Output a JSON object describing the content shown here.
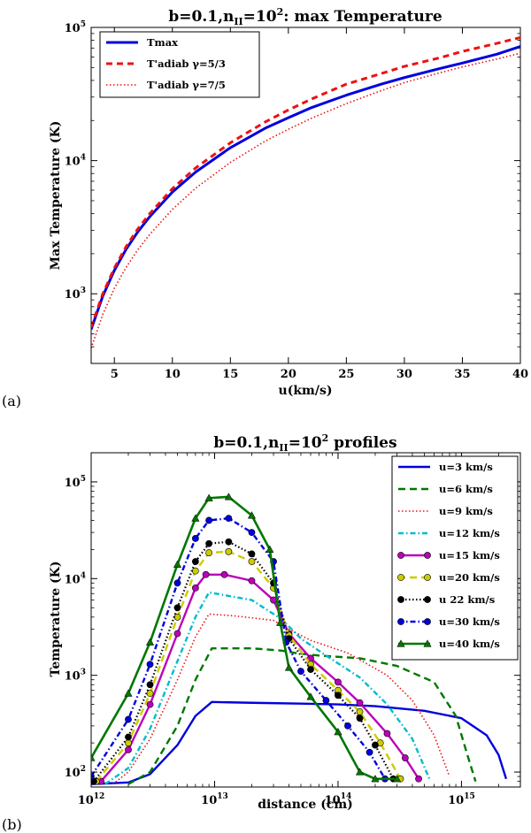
{
  "chart_data": [
    {
      "panel": "(a)",
      "type": "line",
      "title": "b=0.1,n_II=10^2: max Temperature",
      "title_parts": {
        "pre": "b=0.1,n",
        "sub": "II",
        "mid": "=10",
        "sup": "2",
        "post": ":  max Temperature"
      },
      "xlabel": "u(km/s)",
      "ylabel": "Max Temperature (K)",
      "xscale": "linear",
      "yscale": "log",
      "xlim": [
        3,
        40
      ],
      "ylim": [
        300,
        100000
      ],
      "xticks": [
        5,
        10,
        15,
        20,
        25,
        30,
        35,
        40
      ],
      "yticks": [
        {
          "v": 1000,
          "b": "10",
          "e": "3"
        },
        {
          "v": 10000,
          "b": "10",
          "e": "4"
        },
        {
          "v": 100000,
          "b": "10",
          "e": "5"
        }
      ],
      "legend_position": "top-left",
      "series": [
        {
          "name": "Tmax",
          "color": "#0000dd",
          "dash": "",
          "width": 3,
          "marker": "",
          "x": [
            3,
            4,
            5,
            6,
            7,
            8,
            10,
            12,
            15,
            18,
            20,
            22,
            25,
            28,
            30,
            33,
            35,
            38,
            40
          ],
          "y": [
            540,
            960,
            1500,
            2150,
            2900,
            3750,
            5800,
            8200,
            12500,
            17500,
            21000,
            25000,
            31000,
            37500,
            42000,
            49000,
            54000,
            63000,
            72000
          ]
        },
        {
          "name": "T'adiab γ=5/3",
          "color": "#ee1111",
          "dash": "7,5",
          "width": 3,
          "marker": "",
          "x": [
            3,
            4,
            5,
            6,
            7,
            8,
            10,
            12,
            15,
            18,
            20,
            22,
            25,
            28,
            30,
            33,
            35,
            38,
            40
          ],
          "y": [
            560,
            1000,
            1560,
            2250,
            3050,
            3950,
            6150,
            8800,
            13600,
            19500,
            24000,
            29000,
            37500,
            45000,
            51000,
            59000,
            66000,
            76000,
            84000
          ]
        },
        {
          "name": "T'adiab γ=7/5",
          "color": "#ee1111",
          "dash": "1.5,2.5",
          "width": 1.6,
          "marker": "",
          "x": [
            3,
            4,
            5,
            6,
            7,
            8,
            10,
            12,
            15,
            18,
            20,
            22,
            25,
            28,
            30,
            33,
            35,
            38,
            40
          ],
          "y": [
            390,
            700,
            1100,
            1570,
            2130,
            2760,
            4300,
            6200,
            9700,
            14000,
            17200,
            20800,
            26800,
            33500,
            38500,
            45500,
            50500,
            58000,
            64000
          ]
        }
      ]
    },
    {
      "panel": "(b)",
      "type": "line",
      "title": "b=0.1,n_II=10^2 profiles",
      "title_parts": {
        "pre": "b=0.1,n",
        "sub": "II",
        "mid": "=10",
        "sup": "2",
        "post": "  profiles"
      },
      "xlabel": "distance (cm)",
      "ylabel": "Temperature (K)",
      "xscale": "log",
      "yscale": "log",
      "xlim": [
        1000000000000.0,
        3000000000000000.0
      ],
      "ylim": [
        70,
        200000
      ],
      "xticks": [
        {
          "v": 1000000000000.0,
          "b": "10",
          "e": "12"
        },
        {
          "v": 10000000000000.0,
          "b": "10",
          "e": "13"
        },
        {
          "v": 100000000000000.0,
          "b": "10",
          "e": "14"
        },
        {
          "v": 1000000000000000.0,
          "b": "10",
          "e": "15"
        }
      ],
      "yticks": [
        {
          "v": 100,
          "b": "10",
          "e": "2"
        },
        {
          "v": 1000,
          "b": "10",
          "e": "3"
        },
        {
          "v": 10000,
          "b": "10",
          "e": "4"
        },
        {
          "v": 100000,
          "b": "10",
          "e": "5"
        }
      ],
      "legend_position": "top-right",
      "series": [
        {
          "name": "u=3 km/s",
          "color": "#0000dd",
          "dash": "",
          "width": 2.4,
          "marker": "",
          "x": [
            1000000000000.0,
            2000000000000.0,
            3000000000000.0,
            5000000000000.0,
            7000000000000.0,
            9500000000000.0,
            20000000000000.0,
            50000000000000.0,
            100000000000000.0,
            200000000000000.0,
            500000000000000.0,
            1000000000000000.0,
            1600000000000000.0,
            2000000000000000.0,
            2300000000000000.0
          ],
          "y": [
            75,
            78,
            95,
            190,
            380,
            530,
            520,
            510,
            500,
            480,
            430,
            360,
            240,
            150,
            85
          ]
        },
        {
          "name": "u=6 km/s",
          "color": "#007700",
          "dash": "8,5",
          "width": 2.4,
          "marker": "",
          "x": [
            2000000000000.0,
            3000000000000.0,
            5000000000000.0,
            7000000000000.0,
            9500000000000.0,
            20000000000000.0,
            35000000000000.0,
            45000000000000.0,
            70000000000000.0,
            150000000000000.0,
            300000000000000.0,
            600000000000000.0,
            900000000000000.0,
            1100000000000000.0,
            1300000000000000.0
          ],
          "y": [
            75,
            100,
            300,
            900,
            1900,
            1900,
            1800,
            1700,
            1600,
            1500,
            1250,
            850,
            380,
            160,
            80
          ]
        },
        {
          "name": "u=9 km/s",
          "color": "#ee1111",
          "dash": "1.5,2.5",
          "width": 1.6,
          "marker": "",
          "x": [
            1500000000000.0,
            2000000000000.0,
            3000000000000.0,
            5000000000000.0,
            7000000000000.0,
            9000000000000.0,
            15000000000000.0,
            30000000000000.0,
            40000000000000.0,
            60000000000000.0,
            120000000000000.0,
            250000000000000.0,
            400000000000000.0,
            600000000000000.0,
            800000000000000.0
          ],
          "y": [
            75,
            100,
            220,
            900,
            2500,
            4300,
            4100,
            3700,
            3000,
            2300,
            1700,
            1000,
            550,
            240,
            90
          ]
        },
        {
          "name": "u=12 km/s",
          "color": "#00bbcc",
          "dash": "6,3,1.5,3",
          "width": 2.4,
          "marker": "",
          "x": [
            1300000000000.0,
            2000000000000.0,
            3000000000000.0,
            5000000000000.0,
            7000000000000.0,
            9000000000000.0,
            20000000000000.0,
            35000000000000.0,
            50000000000000.0,
            80000000000000.0,
            150000000000000.0,
            250000000000000.0,
            400000000000000.0,
            550000000000000.0
          ],
          "y": [
            75,
            110,
            280,
            1400,
            4000,
            7200,
            6000,
            3800,
            2400,
            1600,
            950,
            500,
            220,
            85
          ]
        },
        {
          "name": "u=15 km/s",
          "color": "#bb00bb",
          "dash": "",
          "width": 2.4,
          "marker": "circle",
          "x": [
            1200000000000.0,
            2000000000000.0,
            3000000000000.0,
            5000000000000.0,
            7000000000000.0,
            8500000000000.0,
            12000000000000.0,
            20000000000000.0,
            30000000000000.0,
            40000000000000.0,
            60000000000000.0,
            100000000000000.0,
            150000000000000.0,
            250000000000000.0,
            350000000000000.0,
            450000000000000.0
          ],
          "y": [
            80,
            170,
            500,
            2700,
            8000,
            11000,
            11000,
            9500,
            6000,
            2700,
            1500,
            850,
            520,
            250,
            140,
            85
          ]
        },
        {
          "name": "u=20 km/s",
          "color": "#cccc00",
          "dash": "8,5",
          "width": 2.4,
          "marker": "circle",
          "x": [
            1100000000000.0,
            2000000000000.0,
            3000000000000.0,
            5000000000000.0,
            7000000000000.0,
            9000000000000.0,
            13000000000000.0,
            20000000000000.0,
            30000000000000.0,
            40000000000000.0,
            60000000000000.0,
            100000000000000.0,
            150000000000000.0,
            220000000000000.0,
            320000000000000.0
          ],
          "y": [
            80,
            200,
            650,
            4000,
            12000,
            18500,
            19000,
            15000,
            8000,
            2600,
            1300,
            700,
            420,
            200,
            85
          ]
        },
        {
          "name": "u  22 km/s",
          "color": "#000000",
          "dash": "1.5,2.5",
          "width": 2.2,
          "marker": "circle",
          "x": [
            1050000000000.0,
            2000000000000.0,
            3000000000000.0,
            5000000000000.0,
            7000000000000.0,
            9000000000000.0,
            13000000000000.0,
            20000000000000.0,
            30000000000000.0,
            40000000000000.0,
            60000000000000.0,
            100000000000000.0,
            150000000000000.0,
            200000000000000.0,
            280000000000000.0
          ],
          "y": [
            80,
            230,
            800,
            5000,
            15000,
            23000,
            24000,
            18000,
            9000,
            2400,
            1150,
            620,
            360,
            190,
            85
          ]
        },
        {
          "name": "u=30 km/s",
          "color": "#0000dd",
          "dash": "6,3,1.5,3",
          "width": 2.4,
          "marker": "circle",
          "x": [
            1000000000000.0,
            2000000000000.0,
            3000000000000.0,
            5000000000000.0,
            7000000000000.0,
            9000000000000.0,
            13000000000000.0,
            20000000000000.0,
            30000000000000.0,
            38000000000000.0,
            50000000000000.0,
            80000000000000.0,
            120000000000000.0,
            180000000000000.0,
            240000000000000.0
          ],
          "y": [
            90,
            350,
            1300,
            9000,
            26000,
            40000,
            42000,
            30000,
            15000,
            2200,
            1100,
            550,
            300,
            160,
            85
          ]
        },
        {
          "name": "u=40 km/s",
          "color": "#007700",
          "dash": "",
          "width": 2.6,
          "marker": "triangle",
          "x": [
            1000000000000.0,
            2000000000000.0,
            3000000000000.0,
            5000000000000.0,
            7000000000000.0,
            9000000000000.0,
            13000000000000.0,
            20000000000000.0,
            28000000000000.0,
            34000000000000.0,
            40000000000000.0,
            60000000000000.0,
            100000000000000.0,
            150000000000000.0,
            200000000000000.0,
            300000000000000.0
          ],
          "y": [
            140,
            650,
            2200,
            14000,
            42000,
            68000,
            70000,
            45000,
            20000,
            3500,
            1200,
            600,
            260,
            100,
            85,
            85
          ]
        }
      ]
    }
  ]
}
